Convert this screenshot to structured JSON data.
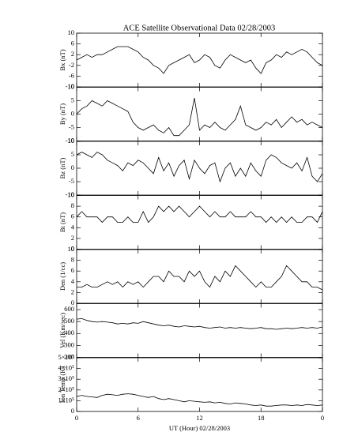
{
  "chart_data": [
    {
      "type": "line",
      "title": "ACE Satellite Observational Data   02/28/2003",
      "ylabel": "Bx (nT)",
      "color": "#000000",
      "xlim": [
        0,
        24
      ],
      "ylim": [
        -10,
        10
      ],
      "yticks": [
        -10,
        -6,
        -2,
        2,
        6,
        10
      ],
      "x": [
        0,
        0.5,
        1,
        1.5,
        2,
        2.5,
        3,
        3.5,
        4,
        4.5,
        5,
        5.5,
        6,
        6.5,
        7,
        7.5,
        8,
        8.5,
        9,
        9.5,
        10,
        10.5,
        11,
        11.5,
        12,
        12.5,
        13,
        13.5,
        14,
        14.5,
        15,
        15.5,
        16,
        16.5,
        17,
        17.5,
        18,
        18.5,
        19,
        19.5,
        20,
        20.5,
        21,
        21.5,
        22,
        22.5,
        23,
        23.5,
        24
      ],
      "values": [
        0,
        1,
        2,
        1,
        2,
        2,
        3,
        4,
        5,
        5,
        5,
        4,
        3,
        1,
        0,
        -2,
        -3,
        -5,
        -2,
        -1,
        0,
        1,
        2,
        -1,
        0,
        2,
        1,
        -2,
        -3,
        0,
        2,
        1,
        0,
        -1,
        0,
        -3,
        -5,
        -1,
        0,
        2,
        1,
        3,
        2,
        3,
        4,
        3,
        1,
        -1,
        -2
      ]
    },
    {
      "type": "line",
      "ylabel": "By (nT)",
      "color": "#000000",
      "xlim": [
        0,
        24
      ],
      "ylim": [
        -10,
        10
      ],
      "yticks": [
        -10,
        -5,
        0,
        5,
        10
      ],
      "x": [
        0,
        0.5,
        1,
        1.5,
        2,
        2.5,
        3,
        3.5,
        4,
        4.5,
        5,
        5.5,
        6,
        6.5,
        7,
        7.5,
        8,
        8.5,
        9,
        9.5,
        10,
        10.5,
        11,
        11.5,
        12,
        12.5,
        13,
        13.5,
        14,
        14.5,
        15,
        15.5,
        16,
        16.5,
        17,
        17.5,
        18,
        18.5,
        19,
        19.5,
        20,
        20.5,
        21,
        21.5,
        22,
        22.5,
        23,
        23.5,
        24
      ],
      "values": [
        0,
        2,
        3,
        5,
        4,
        3,
        5,
        4,
        3,
        2,
        1,
        -3,
        -5,
        -6,
        -5,
        -4,
        -6,
        -7,
        -5,
        -8,
        -8,
        -6,
        -4,
        6,
        -6,
        -4,
        -5,
        -3,
        -5,
        -6,
        -4,
        -2,
        3,
        -4,
        -5,
        -6,
        -5,
        -3,
        -4,
        -2,
        -5,
        -3,
        -1,
        -3,
        -2,
        -4,
        -3,
        -4,
        -5
      ]
    },
    {
      "type": "line",
      "ylabel": "Bz (nT)",
      "color": "#000000",
      "xlim": [
        0,
        24
      ],
      "ylim": [
        -10,
        10
      ],
      "yticks": [
        -10,
        -5,
        0,
        5,
        10
      ],
      "x": [
        0,
        0.5,
        1,
        1.5,
        2,
        2.5,
        3,
        3.5,
        4,
        4.5,
        5,
        5.5,
        6,
        6.5,
        7,
        7.5,
        8,
        8.5,
        9,
        9.5,
        10,
        10.5,
        11,
        11.5,
        12,
        12.5,
        13,
        13.5,
        14,
        14.5,
        15,
        15.5,
        16,
        16.5,
        17,
        17.5,
        18,
        18.5,
        19,
        19.5,
        20,
        20.5,
        21,
        21.5,
        22,
        22.5,
        23,
        23.5,
        24
      ],
      "values": [
        5,
        6,
        5,
        4,
        6,
        5,
        3,
        2,
        1,
        -1,
        2,
        1,
        3,
        2,
        0,
        -2,
        4,
        -1,
        2,
        -3,
        1,
        3,
        -4,
        3,
        0,
        -2,
        1,
        2,
        -5,
        0,
        2,
        -3,
        0,
        -3,
        2,
        -1,
        -3,
        3,
        5,
        4,
        2,
        1,
        0,
        2,
        -1,
        4,
        -3,
        -5,
        -2
      ]
    },
    {
      "type": "line",
      "ylabel": "Bt (nT)",
      "color": "#000000",
      "xlim": [
        0,
        24
      ],
      "ylim": [
        0,
        10
      ],
      "yticks": [
        0,
        2,
        4,
        6,
        8,
        10
      ],
      "x": [
        0,
        0.5,
        1,
        1.5,
        2,
        2.5,
        3,
        3.5,
        4,
        4.5,
        5,
        5.5,
        6,
        6.5,
        7,
        7.5,
        8,
        8.5,
        9,
        9.5,
        10,
        10.5,
        11,
        11.5,
        12,
        12.5,
        13,
        13.5,
        14,
        14.5,
        15,
        15.5,
        16,
        16.5,
        17,
        17.5,
        18,
        18.5,
        19,
        19.5,
        20,
        20.5,
        21,
        21.5,
        22,
        22.5,
        23,
        23.5,
        24
      ],
      "values": [
        6,
        7,
        6,
        6,
        6,
        5,
        6,
        6,
        5,
        5,
        6,
        5,
        5,
        7,
        5,
        6,
        8,
        7,
        8,
        7,
        8,
        7,
        6,
        7,
        8,
        7,
        6,
        7,
        6,
        6,
        7,
        6,
        6,
        6,
        7,
        6,
        6,
        5,
        6,
        5,
        6,
        5,
        6,
        5,
        5,
        6,
        6,
        5,
        7
      ]
    },
    {
      "type": "line",
      "ylabel": "Den (1/cc)",
      "color": "#000000",
      "xlim": [
        0,
        24
      ],
      "ylim": [
        0,
        10
      ],
      "yticks": [
        0,
        2,
        4,
        6,
        8,
        10
      ],
      "x": [
        0,
        0.5,
        1,
        1.5,
        2,
        2.5,
        3,
        3.5,
        4,
        4.5,
        5,
        5.5,
        6,
        6.5,
        7,
        7.5,
        8,
        8.5,
        9,
        9.5,
        10,
        10.5,
        11,
        11.5,
        12,
        12.5,
        13,
        13.5,
        14,
        14.5,
        15,
        15.5,
        16,
        16.5,
        17,
        17.5,
        18,
        18.5,
        19,
        19.5,
        20,
        20.5,
        21,
        21.5,
        22,
        22.5,
        23,
        23.5,
        24
      ],
      "values": [
        3,
        3,
        3.5,
        3,
        3,
        3.5,
        4,
        3.5,
        4,
        3,
        4,
        3.5,
        4,
        3,
        4,
        5,
        5,
        4,
        6,
        5,
        5,
        4,
        6,
        5,
        6,
        4,
        3,
        5,
        4,
        6,
        5,
        7,
        6,
        5,
        4,
        3,
        4,
        3,
        3,
        4,
        5,
        7,
        6,
        5,
        4,
        4,
        3,
        3,
        2.5
      ]
    },
    {
      "type": "line",
      "ylabel": "Vel (Km/sec)",
      "color": "#000000",
      "xlim": [
        0,
        24
      ],
      "ylim": [
        200,
        650
      ],
      "yticks": [
        200,
        300,
        400,
        500,
        600
      ],
      "x": [
        0,
        0.5,
        1,
        1.5,
        2,
        2.5,
        3,
        3.5,
        4,
        4.5,
        5,
        5.5,
        6,
        6.5,
        7,
        7.5,
        8,
        8.5,
        9,
        9.5,
        10,
        10.5,
        11,
        11.5,
        12,
        12.5,
        13,
        13.5,
        14,
        14.5,
        15,
        15.5,
        16,
        16.5,
        17,
        17.5,
        18,
        18.5,
        19,
        19.5,
        20,
        20.5,
        21,
        21.5,
        22,
        22.5,
        23,
        23.5,
        24
      ],
      "values": [
        520,
        525,
        510,
        500,
        495,
        500,
        495,
        490,
        480,
        485,
        480,
        490,
        485,
        500,
        490,
        480,
        470,
        465,
        470,
        460,
        455,
        465,
        460,
        455,
        460,
        450,
        445,
        450,
        455,
        445,
        450,
        445,
        450,
        445,
        440,
        445,
        450,
        440,
        440,
        435,
        440,
        445,
        440,
        445,
        450,
        445,
        450,
        445,
        455
      ]
    },
    {
      "type": "line",
      "ylabel": "Ion Temp (K)",
      "xlabel": "UT (Hour)   02/28/2003",
      "color": "#000000",
      "xlim": [
        0,
        24
      ],
      "ylim": [
        0,
        500000
      ],
      "yticks": [
        0,
        {
          "value": 100000,
          "label": "1×10⁵"
        },
        {
          "value": 200000,
          "label": "2×10⁵"
        },
        {
          "value": 300000,
          "label": "3×10⁵"
        },
        {
          "value": 400000,
          "label": "4×10⁵"
        },
        {
          "value": 500000,
          "label": "5×10⁵"
        }
      ],
      "xticks": [
        0,
        6,
        12,
        18,
        {
          "value": 24,
          "label": "0"
        }
      ],
      "x": [
        0,
        0.5,
        1,
        1.5,
        2,
        2.5,
        3,
        3.5,
        4,
        4.5,
        5,
        5.5,
        6,
        6.5,
        7,
        7.5,
        8,
        8.5,
        9,
        9.5,
        10,
        10.5,
        11,
        11.5,
        12,
        12.5,
        13,
        13.5,
        14,
        14.5,
        15,
        15.5,
        16,
        16.5,
        17,
        17.5,
        18,
        18.5,
        19,
        19.5,
        20,
        20.5,
        21,
        21.5,
        22,
        22.5,
        23,
        23.5,
        24
      ],
      "values": [
        140000,
        150000,
        140000,
        135000,
        130000,
        150000,
        160000,
        155000,
        150000,
        160000,
        165000,
        160000,
        150000,
        140000,
        130000,
        140000,
        120000,
        110000,
        120000,
        110000,
        100000,
        90000,
        100000,
        95000,
        90000,
        85000,
        90000,
        80000,
        85000,
        75000,
        70000,
        80000,
        75000,
        70000,
        60000,
        55000,
        60000,
        50000,
        50000,
        55000,
        60000,
        60000,
        55000,
        60000,
        55000,
        65000,
        60000,
        55000,
        60000
      ]
    }
  ]
}
